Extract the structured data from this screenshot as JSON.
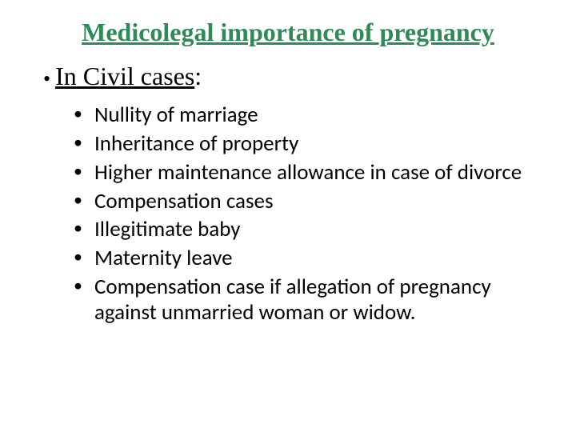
{
  "title": {
    "text": "Medicolegal importance of pregnancy",
    "color": "#2e8b57",
    "fontsize": 32
  },
  "section": {
    "bullet": "•",
    "label": "In Civil cases",
    "suffix": ":",
    "fontsize": 32,
    "color": "#000000"
  },
  "items": [
    "Nullity of marriage",
    "Inheritance of property",
    "Higher maintenance allowance in case of divorce",
    "Compensation cases",
    "Illegitimate baby",
    "Maternity leave",
    "Compensation case if allegation of pregnancy against unmarried woman or widow."
  ],
  "item_style": {
    "fontsize": 27,
    "color": "#000000",
    "bullet_color": "#000000"
  },
  "background_color": "#ffffff"
}
